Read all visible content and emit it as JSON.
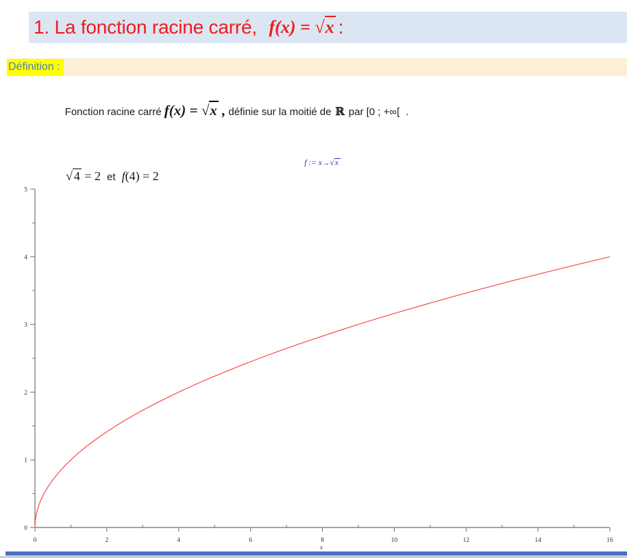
{
  "symbols": {
    "radical": "√"
  },
  "header": {
    "title_prefix": "1. La fonction racine carré, ",
    "title_math_prefix": "f(x) = ",
    "title_sqrt_arg": "x",
    "title_suffix": ":",
    "bg_color": "#dce6f2",
    "text_color": "#ee1c1c"
  },
  "definition": {
    "label": "Définition :",
    "band_color": "#fcefd6",
    "label_color": "#4f81bd",
    "highlight_color": "#ffff00",
    "line1": {
      "text_before": "Fonction racine carré ",
      "math_prefix": "f(x) = ",
      "sqrt_arg": "x",
      "math_suffix": " ,",
      "text_after": " définie sur la moitié de",
      "reals_symbol": "ℝ",
      "text_end": "par [0 ; +∞[",
      "final_period": "."
    },
    "line2": {
      "sqrt_arg": "4",
      "equals_part": "= 2",
      "conjunction": "et",
      "func_letter": "f",
      "rest": "(4) = 2"
    }
  },
  "chart_data": {
    "type": "line",
    "title_prefix": "f := x→",
    "title_sqrt_arg": "x",
    "title_color": "#2a2ac8",
    "xlabel": "x",
    "ylabel": "",
    "x_range": [
      0,
      16
    ],
    "y_range": [
      0,
      5
    ],
    "x_major_ticks": [
      0,
      2,
      4,
      6,
      8,
      10,
      12,
      14,
      16
    ],
    "x_minor_ticks": [
      1,
      3,
      5,
      7,
      9,
      11,
      13,
      15
    ],
    "y_major_ticks": [
      0,
      1,
      2,
      3,
      4,
      5
    ],
    "y_minor_ticks": [
      0.5,
      1.5,
      2.5,
      3.5,
      4.5
    ],
    "grid": false,
    "legend_position": "none",
    "axis_color": "#6f6f6f",
    "tick_label_color": "#333333",
    "series": [
      {
        "name": "sqrt(x)",
        "color": "#fa4848",
        "x": [
          0,
          0.01,
          0.04,
          0.09,
          0.16,
          0.25,
          0.36,
          0.49,
          0.64,
          0.81,
          1,
          1.21,
          1.44,
          1.69,
          1.96,
          2.25,
          2.56,
          2.89,
          3.24,
          3.61,
          4,
          4.41,
          4.84,
          5.29,
          5.76,
          6.25,
          6.76,
          7.29,
          7.84,
          8.41,
          9,
          9.61,
          10.24,
          10.89,
          11.56,
          12.25,
          12.96,
          13.69,
          14.44,
          15.21,
          16
        ],
        "y": [
          0,
          0.1,
          0.2,
          0.3,
          0.4,
          0.5,
          0.6,
          0.7,
          0.8,
          0.9,
          1,
          1.1,
          1.2,
          1.3,
          1.4,
          1.5,
          1.6,
          1.7,
          1.8,
          1.9,
          2,
          2.1,
          2.2,
          2.3,
          2.4,
          2.5,
          2.6,
          2.7,
          2.8,
          2.9,
          3,
          3.1,
          3.2,
          3.3,
          3.4,
          3.5,
          3.6,
          3.7,
          3.8,
          3.9,
          4
        ]
      }
    ]
  },
  "footer": {
    "bar_color": "#4573c4",
    "line_color": "#b9b9b9"
  }
}
